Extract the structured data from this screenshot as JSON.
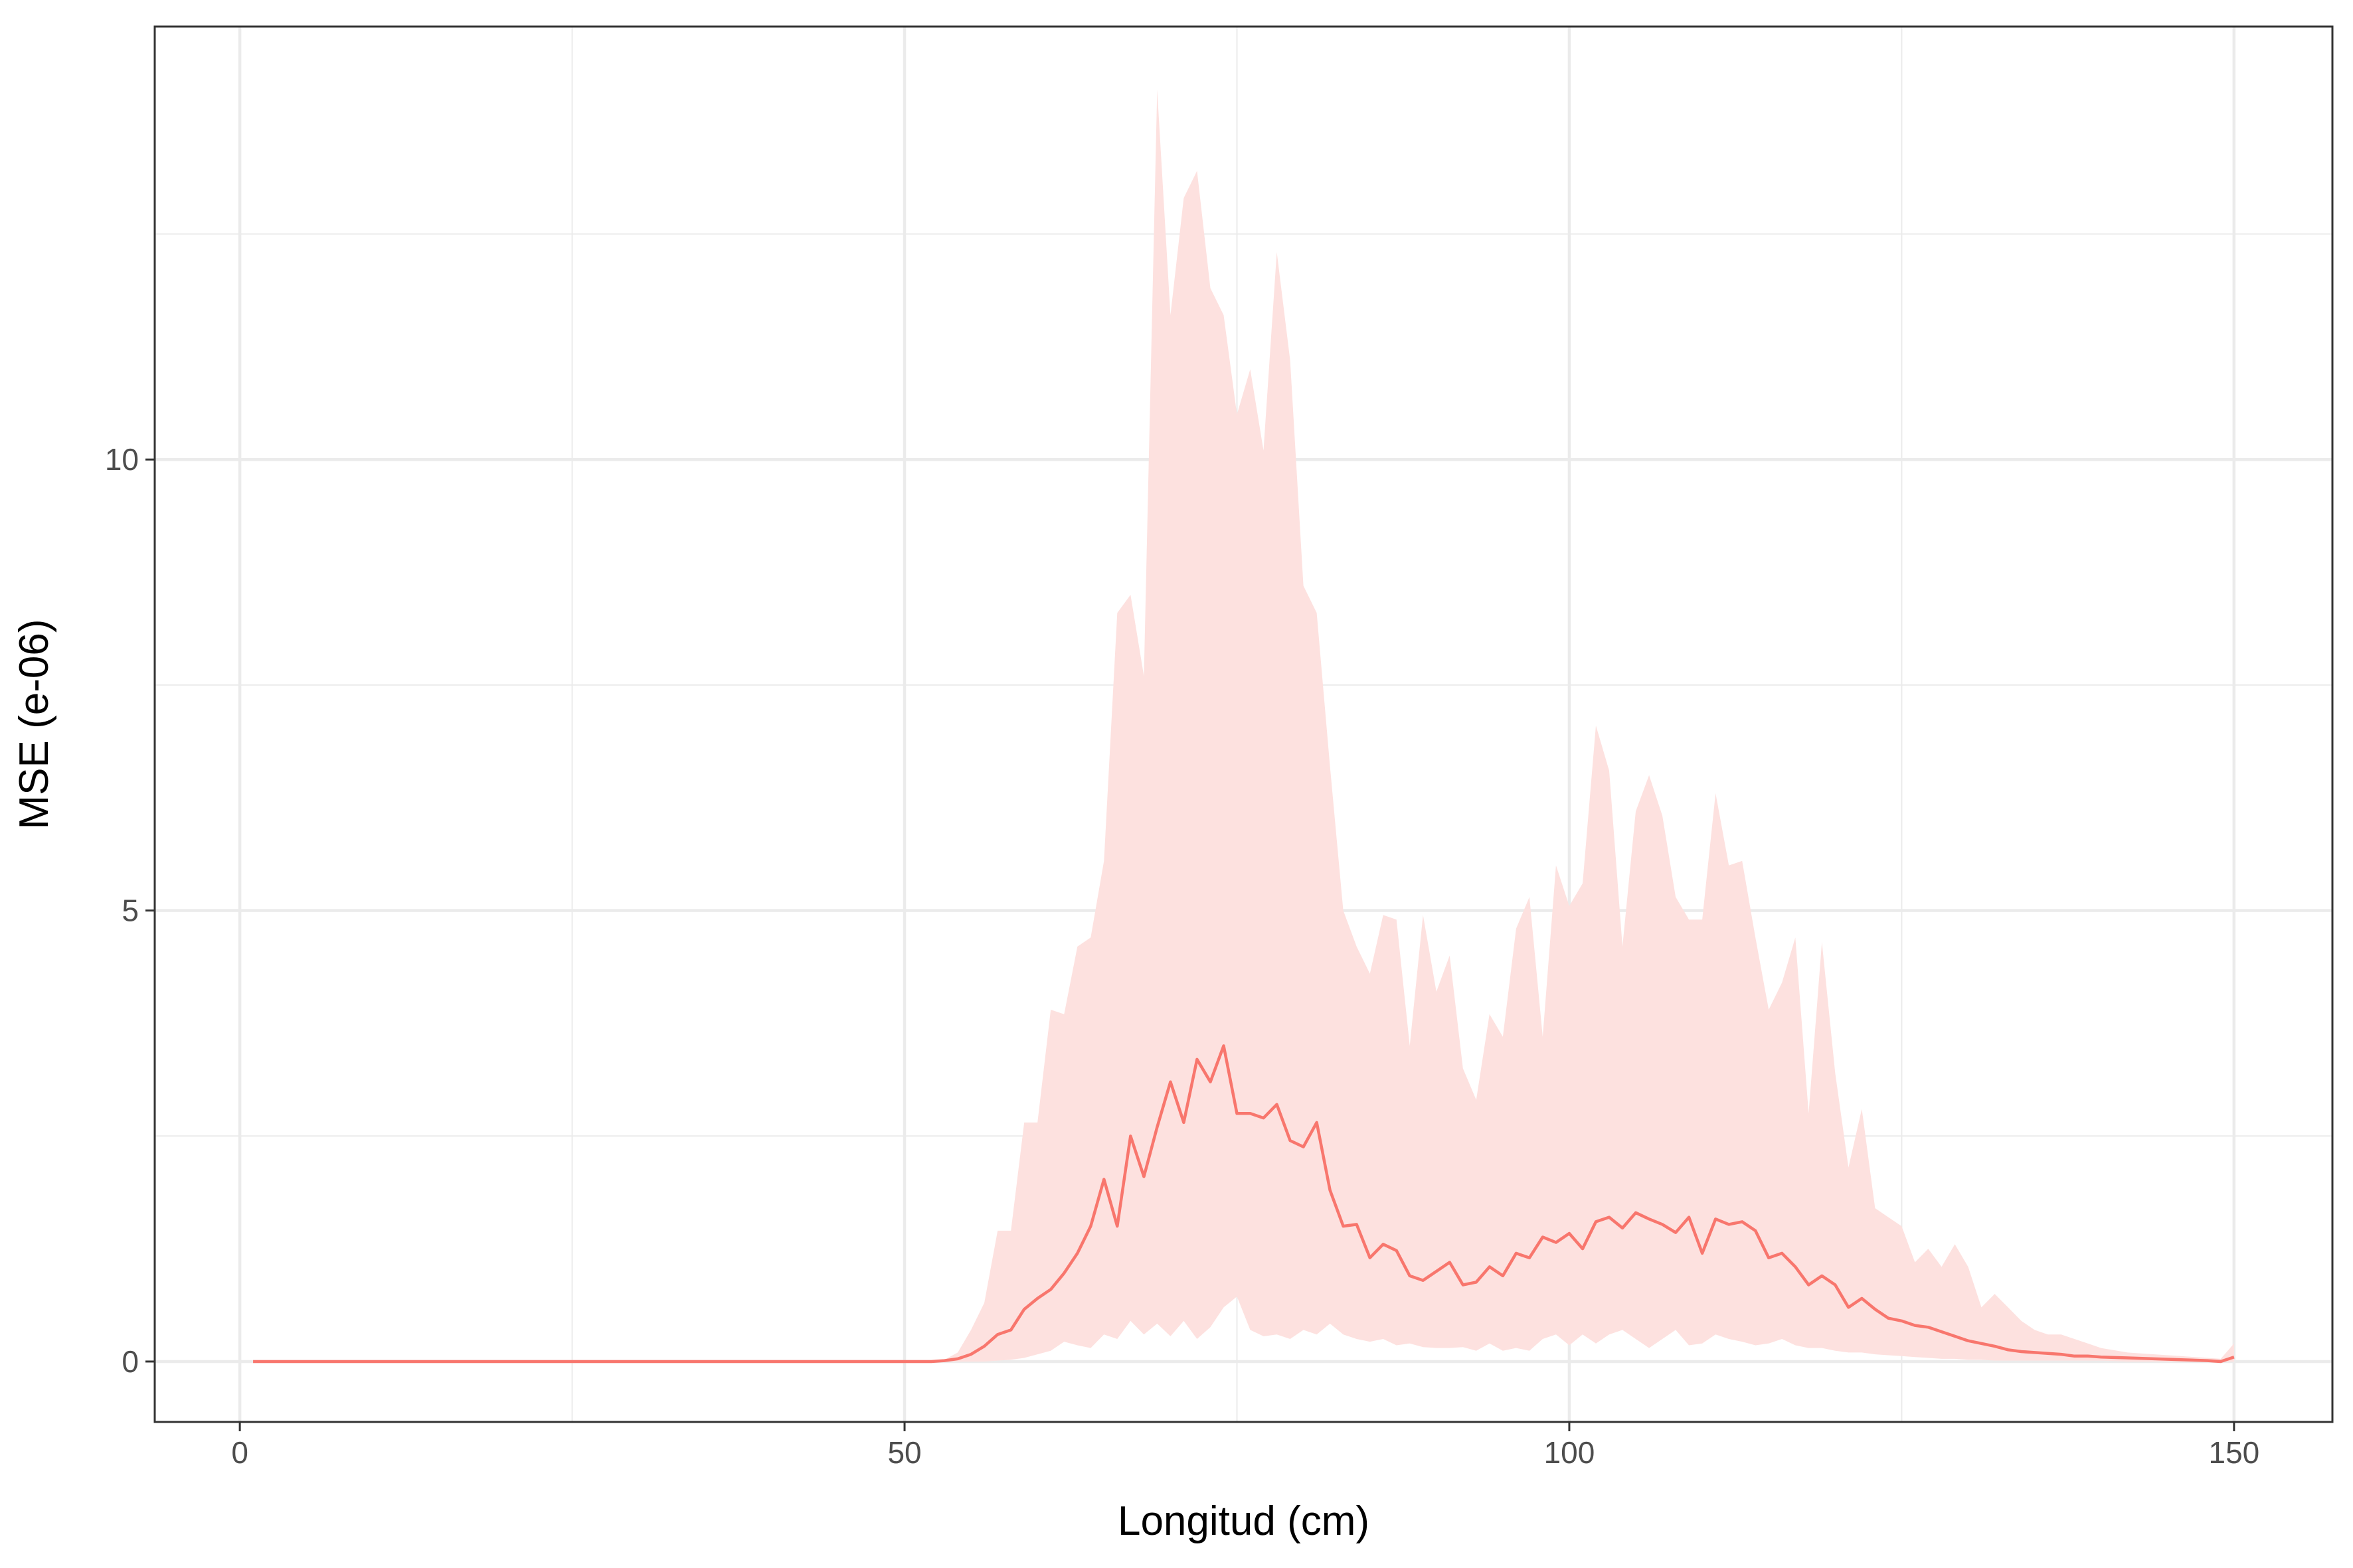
{
  "chart_data": {
    "type": "line",
    "title": "",
    "xlabel": "Longitud (cm)",
    "ylabel": "MSE (e-06)",
    "xlim": [
      -6.4,
      157.4
    ],
    "ylim": [
      -0.67,
      14.8
    ],
    "xticks": [
      0,
      50,
      100,
      150
    ],
    "yticks": [
      0,
      5,
      10
    ],
    "xtick_labels": [
      "0",
      "50",
      "100",
      "150"
    ],
    "ytick_labels": [
      "0",
      "5",
      "10"
    ],
    "grid": true,
    "legend": "none",
    "colors": {
      "line": "#F8766D",
      "band": "#FDE1DF",
      "grid": "#ebebeb",
      "panel_border": "#333333"
    },
    "series": [
      {
        "type": "line",
        "x": [
          1,
          10,
          20,
          30,
          40,
          50,
          52,
          53,
          54,
          55,
          56,
          57,
          58,
          59,
          60,
          61,
          62,
          63,
          64,
          65,
          66,
          67,
          68,
          69,
          70,
          71,
          72,
          73,
          74,
          75,
          76,
          77,
          78,
          79,
          80,
          81,
          82,
          83,
          84,
          85,
          86,
          87,
          88,
          89,
          90,
          91,
          92,
          93,
          94,
          95,
          96,
          97,
          98,
          99,
          100,
          101,
          102,
          103,
          104,
          105,
          106,
          107,
          108,
          109,
          110,
          111,
          112,
          113,
          114,
          115,
          116,
          117,
          118,
          119,
          120,
          121,
          122,
          123,
          124,
          125,
          126,
          127,
          128,
          129,
          130,
          131,
          132,
          133,
          134,
          135,
          136,
          137,
          138,
          139,
          140,
          142,
          144,
          146,
          148,
          149,
          150
        ],
        "y": [
          0,
          0,
          0,
          0,
          0,
          0,
          0,
          0.01,
          0.03,
          0.08,
          0.17,
          0.3,
          0.35,
          0.58,
          0.7,
          0.8,
          0.98,
          1.2,
          1.5,
          2.02,
          1.5,
          2.5,
          2.05,
          2.6,
          3.1,
          2.65,
          3.35,
          3.1,
          3.5,
          2.75,
          2.75,
          2.7,
          2.85,
          2.45,
          2.38,
          2.65,
          1.9,
          1.5,
          1.52,
          1.15,
          1.3,
          1.23,
          0.95,
          0.9,
          1.0,
          1.1,
          0.85,
          0.88,
          1.05,
          0.95,
          1.2,
          1.15,
          1.38,
          1.32,
          1.42,
          1.25,
          1.55,
          1.6,
          1.48,
          1.65,
          1.58,
          1.52,
          1.43,
          1.6,
          1.2,
          1.58,
          1.52,
          1.55,
          1.45,
          1.15,
          1.2,
          1.05,
          0.85,
          0.95,
          0.85,
          0.6,
          0.7,
          0.58,
          0.48,
          0.45,
          0.4,
          0.38,
          0.33,
          0.28,
          0.23,
          0.2,
          0.17,
          0.13,
          0.11,
          0.1,
          0.09,
          0.08,
          0.06,
          0.06,
          0.05,
          0.04,
          0.03,
          0.02,
          0.01,
          0.0,
          0.05
        ],
        "band_upper": [
          0,
          0,
          0,
          0,
          0,
          0,
          0,
          0.02,
          0.1,
          0.35,
          0.65,
          1.45,
          1.45,
          2.65,
          2.65,
          3.9,
          3.85,
          4.6,
          4.7,
          5.55,
          8.3,
          8.5,
          7.6,
          14.1,
          11.6,
          12.9,
          13.2,
          11.9,
          11.6,
          10.5,
          11.0,
          10.1,
          12.3,
          11.1,
          8.6,
          8.3,
          6.6,
          5.0,
          4.6,
          4.3,
          4.95,
          4.9,
          3.5,
          4.95,
          4.1,
          4.5,
          3.25,
          2.9,
          3.85,
          3.6,
          4.8,
          5.15,
          3.6,
          5.5,
          5.05,
          5.3,
          7.05,
          6.55,
          4.6,
          6.1,
          6.5,
          6.05,
          5.15,
          4.9,
          4.9,
          6.3,
          5.5,
          5.55,
          4.7,
          3.9,
          4.2,
          4.7,
          2.75,
          4.65,
          3.2,
          2.15,
          2.8,
          1.7,
          1.6,
          1.5,
          1.1,
          1.25,
          1.05,
          1.3,
          1.05,
          0.6,
          0.75,
          0.6,
          0.45,
          0.35,
          0.3,
          0.3,
          0.25,
          0.2,
          0.15,
          0.1,
          0.08,
          0.06,
          0.04,
          0.03,
          0.2
        ],
        "band_lower": [
          0,
          0,
          0,
          0,
          0,
          0,
          0,
          0,
          0,
          0,
          0,
          0.01,
          0.02,
          0.04,
          0.08,
          0.12,
          0.22,
          0.18,
          0.15,
          0.3,
          0.25,
          0.45,
          0.3,
          0.42,
          0.28,
          0.45,
          0.25,
          0.38,
          0.6,
          0.72,
          0.35,
          0.28,
          0.3,
          0.25,
          0.35,
          0.3,
          0.42,
          0.3,
          0.25,
          0.22,
          0.25,
          0.18,
          0.2,
          0.16,
          0.15,
          0.15,
          0.16,
          0.12,
          0.2,
          0.12,
          0.15,
          0.12,
          0.25,
          0.3,
          0.18,
          0.3,
          0.2,
          0.3,
          0.35,
          0.25,
          0.15,
          0.25,
          0.35,
          0.18,
          0.2,
          0.3,
          0.25,
          0.22,
          0.18,
          0.2,
          0.25,
          0.18,
          0.15,
          0.15,
          0.12,
          0.1,
          0.1,
          0.08,
          0.07,
          0.06,
          0.05,
          0.04,
          0.03,
          0.03,
          0.02,
          0.02,
          0.01,
          0.01,
          0.01,
          0.01,
          0.01,
          0.01,
          0.01,
          0.01,
          0.01,
          0,
          0,
          0,
          0,
          0,
          0
        ]
      }
    ]
  }
}
